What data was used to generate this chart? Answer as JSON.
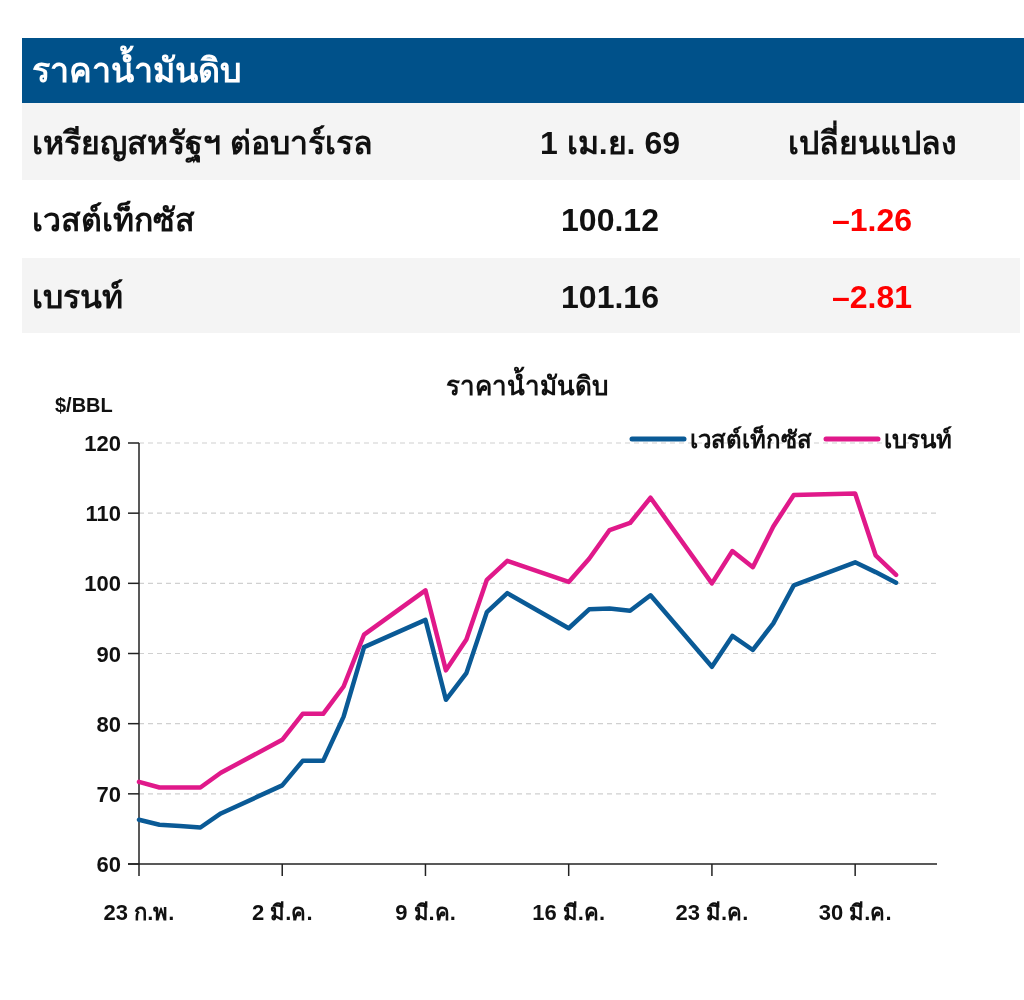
{
  "chart_data": {
    "type": "line",
    "title": "ราคาน้ำมันดิบ",
    "ylabel": "$/BBL",
    "annotations": [
      "ราคาน้ำมันดิบ",
      "เหรียญสหรัฐฯ ต่อบาร์เรล",
      "1 เม.ย. 69",
      "เปลี่ยนแปลง",
      "เวสต์เท็กซัส",
      "100.12",
      "–1.26",
      "เบรนท์",
      "101.16",
      "–2.81"
    ],
    "x": [
      "--02-23",
      "--02-24",
      "--02-25",
      "--02-26",
      "--02-27",
      "--03-02",
      "--03-03",
      "--03-04",
      "--03-05",
      "--03-06",
      "--03-09",
      "--03-10",
      "--03-11",
      "--03-12",
      "--03-13",
      "--03-16",
      "--03-17",
      "--03-18",
      "--03-19",
      "--03-20",
      "--03-23",
      "--03-24",
      "--03-25",
      "--03-26",
      "--03-27",
      "--03-30",
      "--03-31",
      "--04-01"
    ],
    "series": [
      {
        "name": "เวสต์เท็กซัส",
        "color": "#0a5a96",
        "values": [
          66.3,
          65.6,
          65.4,
          65.2,
          67.2,
          71.2,
          74.7,
          74.7,
          81.0,
          90.9,
          94.8,
          83.4,
          87.2,
          95.9,
          98.6,
          93.6,
          96.3,
          96.4,
          96.1,
          98.3,
          88.1,
          92.5,
          90.5,
          94.3,
          99.7,
          103.0,
          101.6,
          100.1
        ]
      },
      {
        "name": "เบรนท์",
        "color": "#e0198a",
        "values": [
          71.7,
          70.9,
          70.9,
          70.9,
          73.0,
          77.7,
          81.4,
          81.4,
          85.3,
          92.7,
          99.0,
          87.6,
          92.0,
          100.5,
          103.2,
          100.2,
          103.5,
          107.6,
          108.6,
          112.2,
          100.0,
          104.6,
          102.3,
          108.1,
          112.6,
          112.8,
          104.0,
          101.2
        ]
      }
    ],
    "xlim": [
      "--02-23",
      "--04-03"
    ],
    "xticks": [
      {
        "value": "--02-23",
        "label": "23 ก.พ."
      },
      {
        "value": "--03-02",
        "label": "2 มี.ค."
      },
      {
        "value": "--03-09",
        "label": "9 มี.ค."
      },
      {
        "value": "--03-16",
        "label": "16 มี.ค."
      },
      {
        "value": "--03-23",
        "label": "23 มี.ค."
      },
      {
        "value": "--03-30",
        "label": "30 มี.ค."
      }
    ],
    "ylim": [
      60,
      120
    ],
    "yticks": [
      60,
      70,
      80,
      90,
      100,
      110,
      120
    ],
    "grid": "y",
    "legend": "top right",
    "line_style": "solid",
    "marker": "none"
  }
}
